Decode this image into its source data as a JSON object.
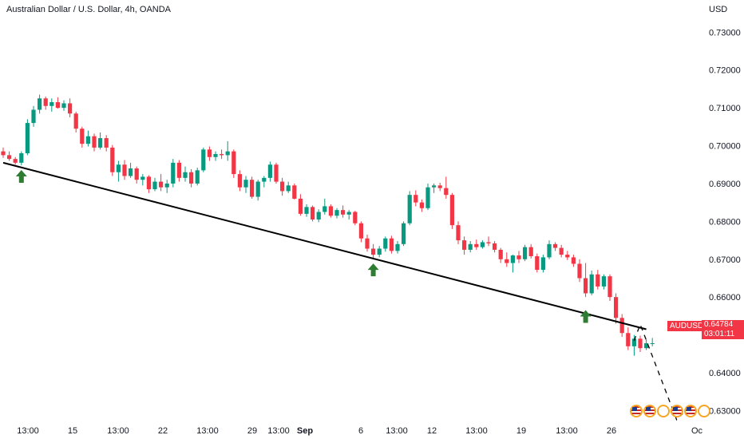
{
  "header": {
    "title": "Australian Dollar / U.S. Dollar, 4h, OANDA",
    "currency": "USD"
  },
  "symbol": {
    "name": "AUDUSD",
    "last_price": "0.64784",
    "countdown": "03:01:11"
  },
  "colors": {
    "up": "#089981",
    "down": "#f23645",
    "trendline": "#000000",
    "arrow": "#2e7d32",
    "price_tag": "#f23645"
  },
  "icons": [
    "us-flag-icon",
    "us-flag-icon",
    "calendar-event-icon",
    "us-flag-icon",
    "us-flag-icon",
    "calendar-event-icon"
  ],
  "chart_data": {
    "type": "candlestick",
    "price_axis": {
      "ticks": [
        "0.73000",
        "0.72000",
        "0.71000",
        "0.70000",
        "0.69000",
        "0.68000",
        "0.67000",
        "0.66000",
        "0.65000",
        "0.64000",
        "0.63000"
      ],
      "ylim": [
        0.6225,
        0.7385
      ]
    },
    "time_axis": {
      "labels": [
        "13:00",
        "15",
        "13:00",
        "22",
        "13:00",
        "29",
        "13:00",
        "Sep",
        "6",
        "13:00",
        "12",
        "13:00",
        "19",
        "13:00",
        "26",
        "Oc"
      ]
    },
    "candles": [
      [
        0.6985,
        0.6995,
        0.6968,
        0.6975
      ],
      [
        0.6975,
        0.6985,
        0.696,
        0.6965
      ],
      [
        0.6965,
        0.697,
        0.695,
        0.6955
      ],
      [
        0.6955,
        0.6985,
        0.6948,
        0.698
      ],
      [
        0.698,
        0.707,
        0.6975,
        0.706
      ],
      [
        0.706,
        0.7105,
        0.705,
        0.7095
      ],
      [
        0.7095,
        0.7135,
        0.7085,
        0.7125
      ],
      [
        0.7125,
        0.713,
        0.7095,
        0.7105
      ],
      [
        0.7105,
        0.7125,
        0.709,
        0.7115
      ],
      [
        0.7115,
        0.7128,
        0.7098,
        0.71
      ],
      [
        0.71,
        0.712,
        0.7092,
        0.7112
      ],
      [
        0.7112,
        0.7125,
        0.7075,
        0.7085
      ],
      [
        0.7085,
        0.709,
        0.7035,
        0.7045
      ],
      [
        0.7045,
        0.705,
        0.6995,
        0.7005
      ],
      [
        0.7005,
        0.704,
        0.6998,
        0.7025
      ],
      [
        0.7025,
        0.7032,
        0.6985,
        0.6995
      ],
      [
        0.6995,
        0.7035,
        0.699,
        0.702
      ],
      [
        0.702,
        0.7028,
        0.6985,
        0.6995
      ],
      [
        0.6995,
        0.7002,
        0.692,
        0.693
      ],
      [
        0.693,
        0.696,
        0.6905,
        0.695
      ],
      [
        0.695,
        0.6962,
        0.691,
        0.692
      ],
      [
        0.692,
        0.6955,
        0.6915,
        0.694
      ],
      [
        0.694,
        0.6945,
        0.69,
        0.691
      ],
      [
        0.691,
        0.6925,
        0.6895,
        0.6918
      ],
      [
        0.6918,
        0.6922,
        0.6875,
        0.6885
      ],
      [
        0.6885,
        0.6915,
        0.688,
        0.6905
      ],
      [
        0.6905,
        0.6925,
        0.688,
        0.689
      ],
      [
        0.689,
        0.691,
        0.6875,
        0.69
      ],
      [
        0.69,
        0.6965,
        0.689,
        0.6955
      ],
      [
        0.6955,
        0.6962,
        0.6905,
        0.6915
      ],
      [
        0.6915,
        0.6945,
        0.6905,
        0.693
      ],
      [
        0.693,
        0.6938,
        0.689,
        0.69
      ],
      [
        0.69,
        0.6942,
        0.6895,
        0.6935
      ],
      [
        0.6935,
        0.6995,
        0.693,
        0.699
      ],
      [
        0.699,
        0.6998,
        0.696,
        0.697
      ],
      [
        0.697,
        0.6985,
        0.696,
        0.6978
      ],
      [
        0.6978,
        0.699,
        0.6965,
        0.6975
      ],
      [
        0.6975,
        0.7012,
        0.696,
        0.6985
      ],
      [
        0.6985,
        0.699,
        0.6915,
        0.6925
      ],
      [
        0.6925,
        0.6935,
        0.688,
        0.689
      ],
      [
        0.689,
        0.692,
        0.6875,
        0.691
      ],
      [
        0.691,
        0.6918,
        0.686,
        0.6865
      ],
      [
        0.6865,
        0.691,
        0.6855,
        0.6905
      ],
      [
        0.6905,
        0.692,
        0.689,
        0.6915
      ],
      [
        0.6915,
        0.6958,
        0.6905,
        0.695
      ],
      [
        0.695,
        0.6955,
        0.69,
        0.6905
      ],
      [
        0.6905,
        0.6915,
        0.6868,
        0.688
      ],
      [
        0.688,
        0.6905,
        0.6875,
        0.6895
      ],
      [
        0.6895,
        0.69,
        0.6858,
        0.686
      ],
      [
        0.686,
        0.6872,
        0.6815,
        0.682
      ],
      [
        0.682,
        0.6845,
        0.6812,
        0.6838
      ],
      [
        0.6838,
        0.6842,
        0.68,
        0.6805
      ],
      [
        0.6805,
        0.6832,
        0.6798,
        0.6825
      ],
      [
        0.6825,
        0.686,
        0.6818,
        0.684
      ],
      [
        0.684,
        0.6845,
        0.681,
        0.6815
      ],
      [
        0.6815,
        0.6835,
        0.6808,
        0.683
      ],
      [
        0.683,
        0.6842,
        0.681,
        0.6818
      ],
      [
        0.6818,
        0.683,
        0.6805,
        0.6825
      ],
      [
        0.6825,
        0.6828,
        0.679,
        0.6795
      ],
      [
        0.6795,
        0.68,
        0.6745,
        0.6755
      ],
      [
        0.6755,
        0.6765,
        0.672,
        0.6728
      ],
      [
        0.6728,
        0.674,
        0.67,
        0.6712
      ],
      [
        0.6712,
        0.6735,
        0.6705,
        0.6728
      ],
      [
        0.6728,
        0.676,
        0.672,
        0.6755
      ],
      [
        0.6755,
        0.6762,
        0.6715,
        0.6722
      ],
      [
        0.6722,
        0.6748,
        0.6715,
        0.674
      ],
      [
        0.674,
        0.68,
        0.6735,
        0.6795
      ],
      [
        0.6795,
        0.688,
        0.679,
        0.687
      ],
      [
        0.687,
        0.6882,
        0.684,
        0.685
      ],
      [
        0.685,
        0.6858,
        0.6825,
        0.6835
      ],
      [
        0.6835,
        0.69,
        0.683,
        0.689
      ],
      [
        0.689,
        0.69,
        0.6875,
        0.6895
      ],
      [
        0.6895,
        0.6902,
        0.688,
        0.6888
      ],
      [
        0.6888,
        0.6918,
        0.686,
        0.687
      ],
      [
        0.687,
        0.6875,
        0.678,
        0.679
      ],
      [
        0.679,
        0.68,
        0.674,
        0.675
      ],
      [
        0.675,
        0.676,
        0.6712,
        0.6725
      ],
      [
        0.6725,
        0.6748,
        0.6718,
        0.674
      ],
      [
        0.674,
        0.6752,
        0.6725,
        0.6732
      ],
      [
        0.6732,
        0.675,
        0.6728,
        0.6745
      ],
      [
        0.6745,
        0.676,
        0.6735,
        0.6742
      ],
      [
        0.6742,
        0.6748,
        0.6718,
        0.6725
      ],
      [
        0.6725,
        0.673,
        0.669,
        0.67
      ],
      [
        0.67,
        0.6718,
        0.668,
        0.669
      ],
      [
        0.669,
        0.6712,
        0.6665,
        0.671
      ],
      [
        0.671,
        0.6722,
        0.669,
        0.67
      ],
      [
        0.67,
        0.6738,
        0.6695,
        0.6732
      ],
      [
        0.6732,
        0.674,
        0.6702,
        0.6708
      ],
      [
        0.6708,
        0.6715,
        0.6665,
        0.6672
      ],
      [
        0.6672,
        0.6712,
        0.6665,
        0.6705
      ],
      [
        0.6705,
        0.675,
        0.67,
        0.674
      ],
      [
        0.674,
        0.6745,
        0.6722,
        0.673
      ],
      [
        0.673,
        0.6738,
        0.6705,
        0.6712
      ],
      [
        0.6712,
        0.6722,
        0.6698,
        0.6705
      ],
      [
        0.6705,
        0.6712,
        0.668,
        0.6688
      ],
      [
        0.6688,
        0.67,
        0.664,
        0.665
      ],
      [
        0.665,
        0.669,
        0.66,
        0.661
      ],
      [
        0.661,
        0.667,
        0.6605,
        0.666
      ],
      [
        0.666,
        0.6672,
        0.662,
        0.6628
      ],
      [
        0.6628,
        0.666,
        0.662,
        0.6655
      ],
      [
        0.6655,
        0.666,
        0.659,
        0.66
      ],
      [
        0.66,
        0.661,
        0.653,
        0.6545
      ],
      [
        0.6545,
        0.6555,
        0.6495,
        0.6505
      ],
      [
        0.6505,
        0.652,
        0.646,
        0.647
      ],
      [
        0.647,
        0.65,
        0.6445,
        0.649
      ],
      [
        0.649,
        0.6498,
        0.6455,
        0.6465
      ],
      [
        0.6465,
        0.6488,
        0.646,
        0.6478
      ],
      [
        0.6478,
        0.6492,
        0.647,
        0.6478
      ]
    ],
    "trendline": {
      "from": {
        "candle": 0,
        "price": 0.6955
      },
      "to": {
        "candle": 106,
        "price": 0.6515
      }
    },
    "support_touches": [
      {
        "candle": 3,
        "price": 0.6942
      },
      {
        "candle": 61,
        "price": 0.6695
      },
      {
        "candle": 96,
        "price": 0.6572
      }
    ],
    "projection": [
      {
        "candle": 104,
        "price": 0.6485
      },
      {
        "candle": 105,
        "price": 0.6528
      },
      {
        "candle": 111,
        "price": 0.6276
      },
      {
        "candle": 112,
        "price": 0.6292
      }
    ]
  }
}
